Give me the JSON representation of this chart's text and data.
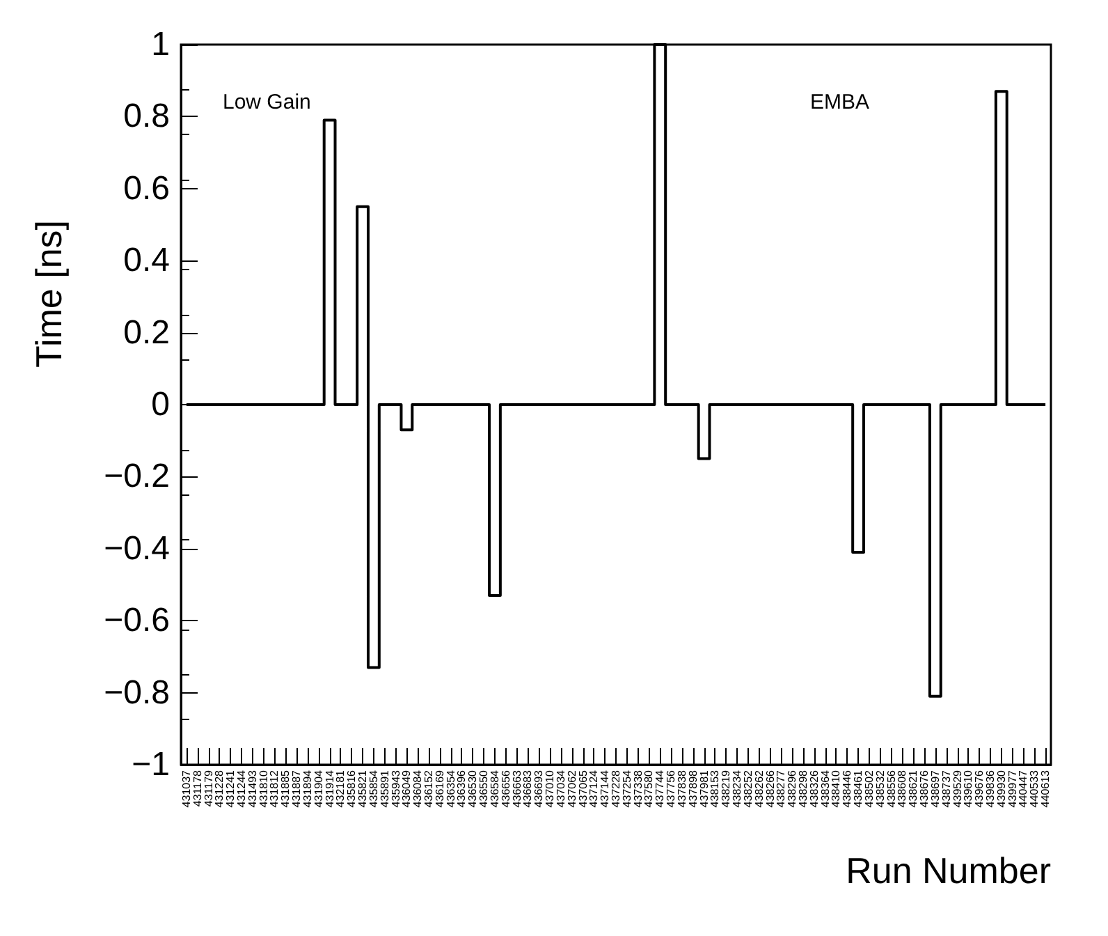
{
  "chart_data": {
    "type": "step",
    "xlabel": "Run Number",
    "ylabel": "Time [ns]",
    "annotations": [
      "Low Gain",
      "EMBA"
    ],
    "categories": [
      "431037",
      "431178",
      "431179",
      "431228",
      "431241",
      "431244",
      "431493",
      "431810",
      "431812",
      "431885",
      "431887",
      "431894",
      "431904",
      "431914",
      "432181",
      "435816",
      "435821",
      "435854",
      "435891",
      "435943",
      "436049",
      "436084",
      "436152",
      "436169",
      "436354",
      "436396",
      "436530",
      "436550",
      "436584",
      "436656",
      "436663",
      "436683",
      "436693",
      "437010",
      "437034",
      "437062",
      "437065",
      "437124",
      "437144",
      "437228",
      "437254",
      "437338",
      "437580",
      "437744",
      "437756",
      "437838",
      "437898",
      "437981",
      "438153",
      "438219",
      "438234",
      "438252",
      "438262",
      "438266",
      "438277",
      "438296",
      "438298",
      "438326",
      "438364",
      "438410",
      "438446",
      "438461",
      "438502",
      "438532",
      "438556",
      "438608",
      "438621",
      "438676",
      "438697",
      "438737",
      "439529",
      "439610",
      "439676",
      "439836",
      "439930",
      "439977",
      "440447",
      "440533",
      "440613"
    ],
    "values": [
      0,
      0,
      0,
      0,
      0,
      0,
      0,
      0,
      0,
      0,
      0,
      0,
      0,
      0.79,
      0,
      0,
      0.55,
      -0.73,
      0,
      0,
      -0.07,
      0,
      0,
      0,
      0,
      0,
      0,
      0,
      -0.53,
      0,
      0,
      0,
      0,
      0,
      0,
      0,
      0,
      0,
      0,
      0,
      0,
      0,
      0,
      1.0,
      0,
      0,
      0,
      -0.15,
      0,
      0,
      0,
      0,
      0,
      0,
      0,
      0,
      0,
      0,
      0,
      0,
      0,
      -0.41,
      0,
      0,
      0,
      0,
      0,
      0,
      -0.81,
      0,
      0,
      0,
      0,
      0,
      0.87,
      0,
      0,
      0,
      0
    ],
    "color": "#000000",
    "ylim": [
      -1,
      1
    ],
    "yticks": [
      -1,
      -0.8,
      -0.6,
      -0.4,
      -0.2,
      0,
      0.2,
      0.4,
      0.6,
      0.8,
      1
    ],
    "marker": "none",
    "line_style": "solid",
    "grid": false
  }
}
